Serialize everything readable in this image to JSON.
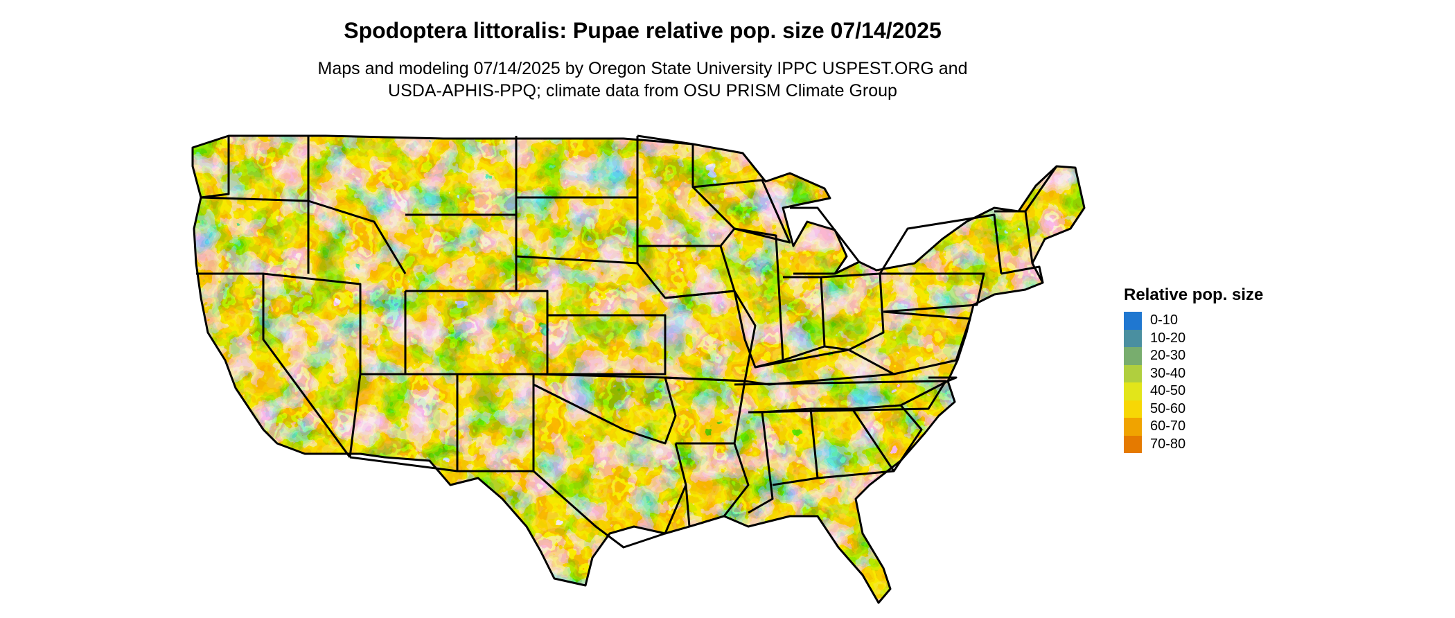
{
  "title": "Spodoptera littoralis: Pupae relative pop. size 07/14/2025",
  "subtitle_line1": "Maps and modeling 07/14/2025 by Oregon State University IPPC USPEST.ORG and",
  "subtitle_line2": "USDA-APHIS-PPQ; climate data from OSU PRISM Climate Group",
  "legend": {
    "title": "Relative pop. size",
    "items": [
      {
        "label": "0-10",
        "color": "#1f77d0"
      },
      {
        "label": "10-20",
        "color": "#4a8fa0"
      },
      {
        "label": "20-30",
        "color": "#78ad6e"
      },
      {
        "label": "30-40",
        "color": "#b0cf3e"
      },
      {
        "label": "40-50",
        "color": "#e2e51a"
      },
      {
        "label": "50-60",
        "color": "#f7d705"
      },
      {
        "label": "60-70",
        "color": "#f0a300"
      },
      {
        "label": "70-80",
        "color": "#e57a00"
      }
    ]
  },
  "map": {
    "region": "contiguous-united-states",
    "boundary_color": "#000000"
  }
}
